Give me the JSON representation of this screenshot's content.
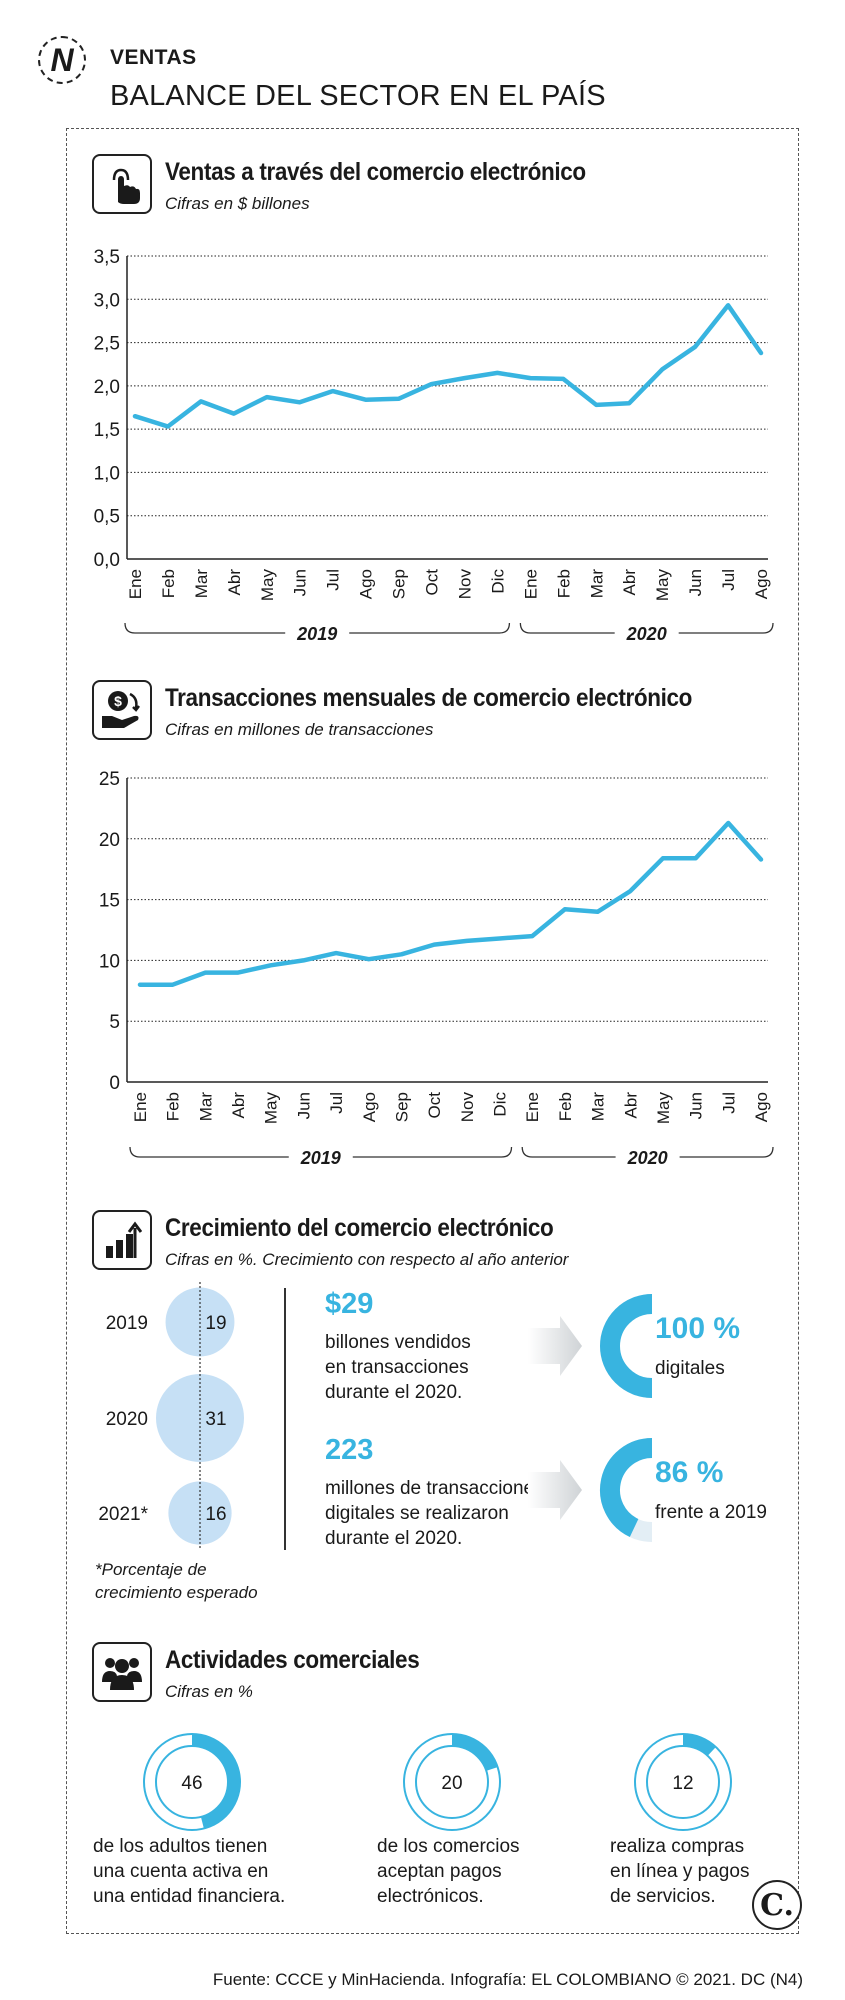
{
  "header": {
    "logo_letter": "N",
    "section": "VENTAS",
    "title": "BALANCE DEL SECTOR EN EL PAÍS"
  },
  "ventas": {
    "title": "Ventas a través del comercio electrónico",
    "subtitle": "Cifras en $ billones"
  },
  "transacciones": {
    "title": "Transacciones mensuales de comercio electrónico",
    "subtitle": "Cifras en millones de transacciones"
  },
  "crecimiento": {
    "title": "Crecimiento del comercio electrónico",
    "subtitle": "Cifras en %. Crecimiento con respecto al año anterior",
    "bubbles": [
      {
        "year": "2019",
        "value": 19
      },
      {
        "year": "2020",
        "value": 31
      },
      {
        "year": "2021*",
        "value": 16
      }
    ],
    "footnote_1": "*Porcentaje de",
    "footnote_2": "crecimiento esperado",
    "stats": [
      {
        "big": "$29",
        "line1": "billones vendidos",
        "line2": "en transacciones",
        "line3": "durante el 2020.",
        "pct": "100 %",
        "pct_value": 100,
        "pct_label": "digitales"
      },
      {
        "big": "223",
        "line1": "millones de transacciones",
        "line2": "digitales se realizaron",
        "line3": "durante el 2020.",
        "pct": "86 %",
        "pct_value": 86,
        "pct_label": "frente a 2019"
      }
    ]
  },
  "actividades": {
    "title": "Actividades comerciales",
    "subtitle": "Cifras en %",
    "items": [
      {
        "value": 46,
        "label": "46",
        "line1": "de los adultos tienen",
        "line2": "una cuenta activa en",
        "line3": "una entidad financiera."
      },
      {
        "value": 20,
        "label": "20",
        "line1": "de los comercios",
        "line2": "aceptan pagos",
        "line3": "electrónicos."
      },
      {
        "value": 12,
        "label": "12",
        "line1": "realiza compras",
        "line2": "en línea y pagos",
        "line3": "de servicios."
      }
    ]
  },
  "footer": {
    "source": "Fuente: CCCE y MinHacienda. Infografía: EL COLOMBIANO © 2021. DC (N4)",
    "brand": "C."
  },
  "colors": {
    "accent": "#38b4e0",
    "bubble": "#c6e0f5"
  },
  "chart_data": [
    {
      "type": "line",
      "title": "Ventas a través del comercio electrónico",
      "ylabel": "Cifras en $ billones",
      "categories": [
        "Ene",
        "Feb",
        "Mar",
        "Abr",
        "May",
        "Jun",
        "Jul",
        "Ago",
        "Sep",
        "Oct",
        "Nov",
        "Dic",
        "Ene",
        "Feb",
        "Mar",
        "Abr",
        "May",
        "Jun",
        "Jul",
        "Ago"
      ],
      "groups": [
        {
          "label": "2019",
          "count": 12
        },
        {
          "label": "2020",
          "count": 8
        }
      ],
      "values": [
        1.65,
        1.53,
        1.82,
        1.68,
        1.87,
        1.81,
        1.94,
        1.84,
        1.85,
        2.02,
        2.09,
        2.15,
        2.09,
        2.08,
        1.78,
        1.8,
        2.19,
        2.45,
        2.93,
        2.38
      ],
      "ylim": [
        0,
        3.5
      ],
      "yticks": [
        "0,0",
        "0,5",
        "1,0",
        "1,5",
        "2,0",
        "2,5",
        "3,0",
        "3,5"
      ],
      "grid": true
    },
    {
      "type": "line",
      "title": "Transacciones mensuales de comercio electrónico",
      "ylabel": "Cifras en millones de transacciones",
      "categories": [
        "Ene",
        "Feb",
        "Mar",
        "Abr",
        "May",
        "Jun",
        "Jul",
        "Ago",
        "Sep",
        "Oct",
        "Nov",
        "Dic",
        "Ene",
        "Feb",
        "Mar",
        "Abr",
        "May",
        "Jun",
        "Jul",
        "Ago"
      ],
      "groups": [
        {
          "label": "2019",
          "count": 12
        },
        {
          "label": "2020",
          "count": 8
        }
      ],
      "values": [
        8.0,
        8.0,
        9.0,
        9.0,
        9.6,
        10.0,
        10.6,
        10.1,
        10.5,
        11.3,
        11.6,
        11.8,
        12.0,
        14.2,
        14.0,
        15.7,
        18.4,
        18.4,
        21.3,
        18.3
      ],
      "ylim": [
        0,
        25
      ],
      "yticks": [
        "0",
        "5",
        "10",
        "15",
        "20",
        "25"
      ],
      "grid": true
    }
  ]
}
